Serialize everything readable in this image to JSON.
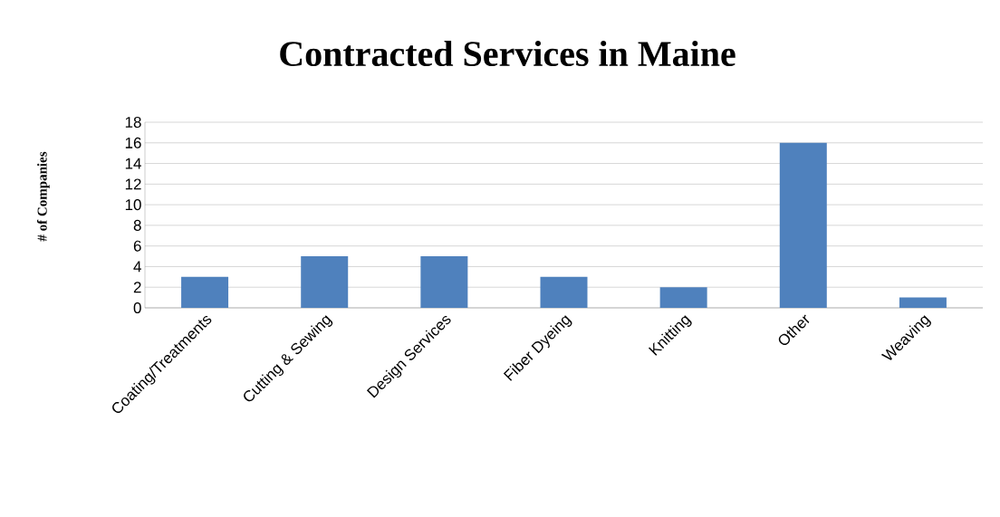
{
  "chart_data": {
    "type": "bar",
    "title": "Contracted Services in Maine",
    "ylabel": "# of Companies",
    "categories": [
      "Coating/Treatments",
      "Cutting & Sewing",
      "Design Services",
      "Fiber Dyeing",
      "Knitting",
      "Other",
      "Weaving"
    ],
    "values": [
      3,
      5,
      5,
      3,
      2,
      16,
      1
    ],
    "color": "#4f81bd",
    "ylim": [
      0,
      18
    ],
    "yticks": [
      0,
      2,
      4,
      6,
      8,
      10,
      12,
      14,
      16,
      18
    ],
    "grid": "y"
  }
}
